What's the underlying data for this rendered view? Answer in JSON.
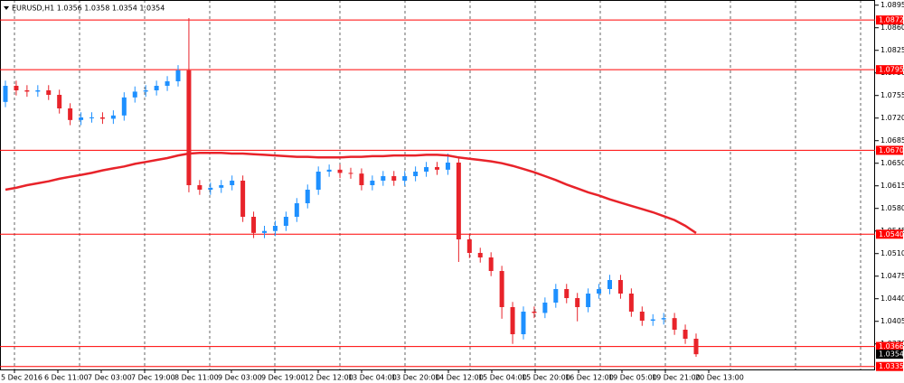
{
  "chart_data": {
    "type": "candlestick",
    "title": "EURUSD,H1  1.0356 1.0358 1.0354 1.0354",
    "x_labels": [
      "5 Dec 2016",
      "6 Dec 11:00",
      "7 Dec 03:00",
      "7 Dec 19:00",
      "8 Dec 11:00",
      "9 Dec 03:00",
      "9 Dec 19:00",
      "12 Dec 12:00",
      "13 Dec 04:00",
      "13 Dec 20:00",
      "14 Dec 12:00",
      "15 Dec 04:00",
      "15 Dec 20:00",
      "16 Dec 12:00",
      "19 Dec 05:00",
      "19 Dec 21:00",
      "20 Dec 13:00"
    ],
    "open": [
      1.0745,
      1.077,
      1.0763,
      1.0761,
      1.0763,
      1.0756,
      1.0735,
      1.0717,
      1.0721,
      1.0721,
      1.0719,
      1.0724,
      1.0752,
      1.0761,
      1.0763,
      1.077,
      1.0777,
      1.0794,
      1.0616,
      1.0609,
      1.0612,
      1.0616,
      1.0623,
      1.0567,
      1.0542,
      1.0545,
      1.0553,
      1.0567,
      1.0588,
      1.0609,
      1.0637,
      1.064,
      1.0635,
      1.0634,
      1.0616,
      1.0623,
      1.063,
      1.0623,
      1.063,
      1.0637,
      1.0644,
      1.064,
      1.0651,
      1.0532,
      1.0511,
      1.0504,
      1.0483,
      1.0427,
      1.0385,
      1.042,
      1.0418,
      1.0434,
      1.0455,
      1.0441,
      1.0427,
      1.0448,
      1.0455,
      1.0469,
      1.0448,
      1.042,
      1.0406,
      1.0408,
      1.041,
      1.0392,
      1.0378
    ],
    "high": [
      1.0778,
      1.0778,
      1.0771,
      1.0771,
      1.0771,
      1.0764,
      1.0743,
      1.0729,
      1.0729,
      1.0729,
      1.0732,
      1.076,
      1.0769,
      1.0771,
      1.0778,
      1.0785,
      1.0802,
      1.0875,
      1.0624,
      1.062,
      1.0624,
      1.0631,
      1.0631,
      1.0575,
      1.0553,
      1.0561,
      1.0575,
      1.0596,
      1.0617,
      1.0645,
      1.0648,
      1.0648,
      1.0643,
      1.0642,
      1.0631,
      1.0638,
      1.0638,
      1.0638,
      1.0645,
      1.0652,
      1.0652,
      1.0665,
      1.0659,
      1.054,
      1.0519,
      1.0512,
      1.0491,
      1.0435,
      1.0428,
      1.0428,
      1.0442,
      1.0463,
      1.0463,
      1.0449,
      1.0456,
      1.0463,
      1.0477,
      1.0477,
      1.0456,
      1.0428,
      1.0416,
      1.0418,
      1.0418,
      1.04,
      1.0386
    ],
    "low": [
      1.0737,
      1.0755,
      1.0753,
      1.0753,
      1.0748,
      1.0727,
      1.0709,
      1.0709,
      1.0713,
      1.0711,
      1.0711,
      1.0716,
      1.0744,
      1.0753,
      1.0755,
      1.0762,
      1.0769,
      1.0605,
      1.0601,
      1.0601,
      1.0604,
      1.0608,
      1.0559,
      1.0534,
      1.0534,
      1.0537,
      1.0545,
      1.0559,
      1.058,
      1.0601,
      1.0629,
      1.0627,
      1.0626,
      1.0608,
      1.0608,
      1.0615,
      1.0615,
      1.0615,
      1.0622,
      1.0629,
      1.0632,
      1.0632,
      1.0497,
      1.0503,
      1.0496,
      1.0475,
      1.0409,
      1.037,
      1.0377,
      1.041,
      1.041,
      1.0426,
      1.0433,
      1.0405,
      1.0419,
      1.044,
      1.0447,
      1.044,
      1.0412,
      1.0398,
      1.0398,
      1.04,
      1.0384,
      1.037,
      1.035
    ],
    "close": [
      1.077,
      1.0763,
      1.0761,
      1.0763,
      1.0756,
      1.0735,
      1.0717,
      1.0721,
      1.0721,
      1.0719,
      1.0724,
      1.0752,
      1.0761,
      1.0763,
      1.077,
      1.0777,
      1.0794,
      1.0616,
      1.0609,
      1.0612,
      1.0616,
      1.0623,
      1.0567,
      1.0542,
      1.0545,
      1.0553,
      1.0567,
      1.0588,
      1.0609,
      1.0637,
      1.064,
      1.0635,
      1.0634,
      1.0616,
      1.0623,
      1.063,
      1.0623,
      1.063,
      1.0637,
      1.0644,
      1.064,
      1.0651,
      1.0532,
      1.0511,
      1.0504,
      1.0483,
      1.0427,
      1.0385,
      1.042,
      1.0418,
      1.0434,
      1.0455,
      1.0441,
      1.0427,
      1.0448,
      1.0455,
      1.0469,
      1.0448,
      1.042,
      1.0406,
      1.0408,
      1.041,
      1.0392,
      1.0378,
      1.0354
    ],
    "up_color": "#1e90ff",
    "down_color": "#e8232a",
    "moving_average": {
      "color": "#e8232a",
      "values": [
        1.0609,
        1.0612,
        1.0616,
        1.0619,
        1.0622,
        1.0626,
        1.0629,
        1.0632,
        1.0635,
        1.0639,
        1.0642,
        1.0645,
        1.0649,
        1.0652,
        1.0655,
        1.0658,
        1.0662,
        1.0665,
        1.0666,
        1.0666,
        1.0666,
        1.0665,
        1.0665,
        1.0664,
        1.0663,
        1.0662,
        1.0661,
        1.066,
        1.066,
        1.0659,
        1.0659,
        1.0659,
        1.066,
        1.066,
        1.0661,
        1.0661,
        1.0662,
        1.0662,
        1.0662,
        1.0663,
        1.0663,
        1.0662,
        1.0659,
        1.0657,
        1.0655,
        1.0653,
        1.065,
        1.0646,
        1.0641,
        1.0636,
        1.063,
        1.0624,
        1.0617,
        1.0611,
        1.0605,
        1.06,
        1.0594,
        1.0589,
        1.0584,
        1.0579,
        1.0574,
        1.0568,
        1.0562,
        1.0553,
        1.0542
      ]
    },
    "levels": [
      1.0872,
      1.0795,
      {
        "value": 1.067,
        "label": "1.0670"
      },
      {
        "value": 1.054,
        "label": "1.0540"
      },
      1.0366,
      1.0335
    ],
    "level_color": "#ff0000",
    "current_price": 1.0354,
    "ylim": [
      1.0329,
      1.0903
    ],
    "yticks": [
      1.0895,
      {
        "value": 1.086,
        "label": "1.0860"
      },
      1.0825,
      {
        "value": 1.079,
        "label": "1.0790"
      },
      1.0755,
      {
        "value": 1.072,
        "label": "1.0720"
      },
      1.0685,
      {
        "value": 1.065,
        "label": "1.0650"
      },
      1.0615,
      {
        "value": 1.058,
        "label": "1.0580"
      },
      1.0545,
      {
        "value": 1.051,
        "label": "1.0510"
      },
      1.0475,
      {
        "value": 1.044,
        "label": "1.0440"
      },
      1.0405,
      {
        "value": 1.037,
        "label": "1.0370"
      }
    ],
    "grid": true
  }
}
